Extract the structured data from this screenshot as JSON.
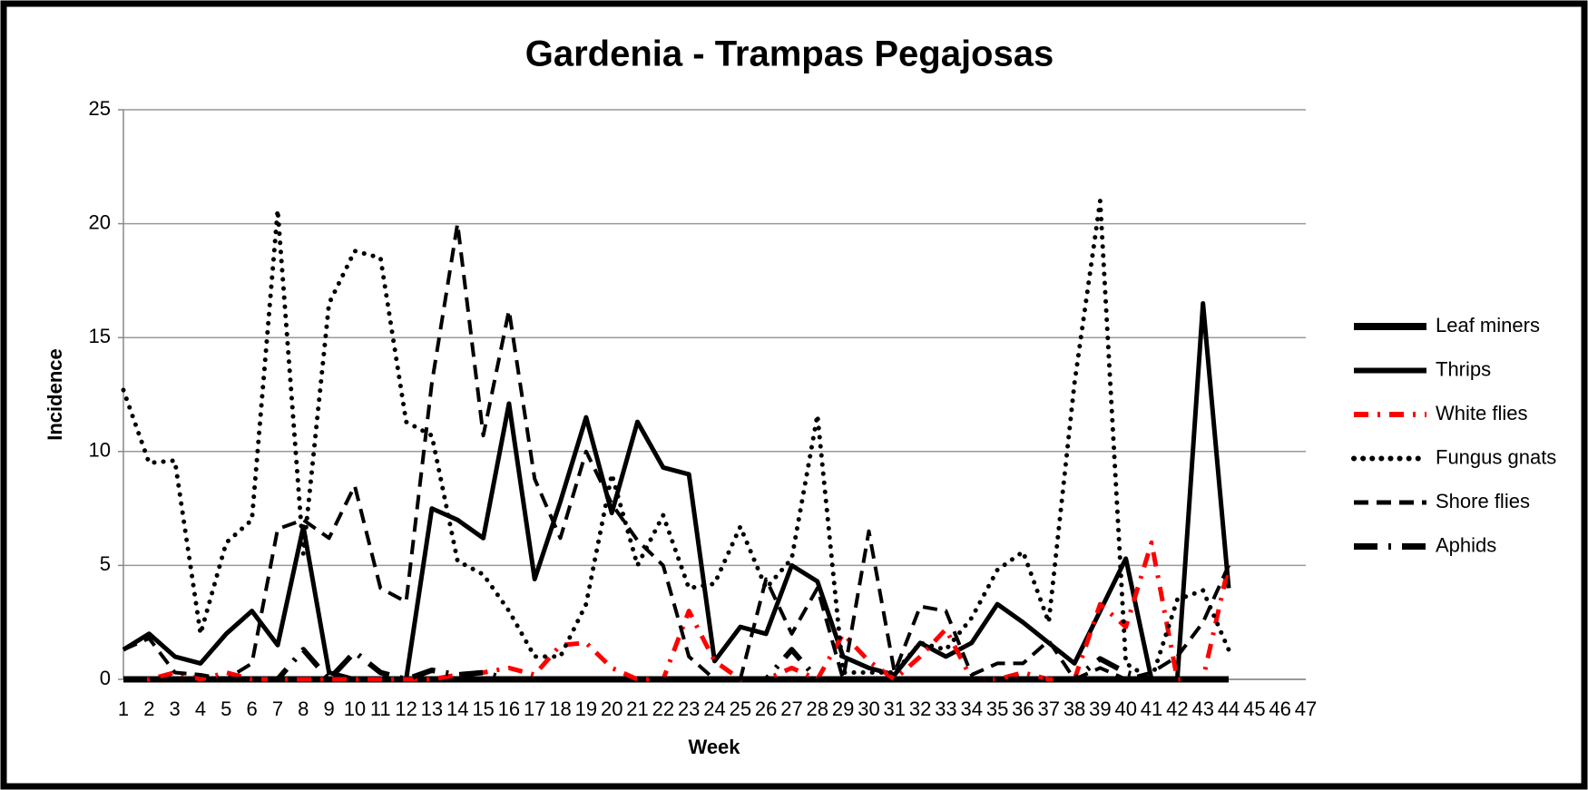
{
  "chart_data": {
    "type": "line",
    "title": "Gardenia - Trampas Pegajosas",
    "x_label": "Week",
    "y_label": "Incidence",
    "categories": [
      "1",
      "2",
      "3",
      "4",
      "5",
      "6",
      "7",
      "8",
      "9",
      "10",
      "11",
      "12",
      "13",
      "14",
      "15",
      "16",
      "17",
      "18",
      "19",
      "20",
      "21",
      "22",
      "23",
      "24",
      "25",
      "26",
      "27",
      "28",
      "29",
      "30",
      "31",
      "32",
      "33",
      "34",
      "35",
      "36",
      "37",
      "38",
      "39",
      "40",
      "41",
      "42",
      "43",
      "44",
      "45",
      "46",
      "47"
    ],
    "ylim": [
      0,
      25
    ],
    "yticks": [
      0,
      5,
      10,
      15,
      20,
      25
    ],
    "grid": true,
    "legend": "right",
    "series": [
      {
        "name": "Leaf miners",
        "color": "#000000",
        "style": "solid-heavy",
        "values": [
          0,
          0,
          0,
          0,
          0,
          0,
          0,
          0,
          0,
          0,
          0,
          0,
          0,
          0,
          0,
          0,
          0,
          0,
          0,
          0,
          0,
          0,
          0,
          0,
          0,
          0,
          0,
          0,
          0,
          0,
          0,
          0,
          0,
          0,
          0,
          0,
          0,
          0,
          0,
          0,
          0,
          0,
          0,
          0,
          null,
          null,
          null
        ]
      },
      {
        "name": "Thrips",
        "color": "#000000",
        "style": "solid",
        "values": [
          1.3,
          2,
          1,
          0.7,
          2,
          3,
          1.5,
          6.7,
          0.3,
          0,
          0,
          0,
          7.5,
          7,
          6.2,
          12.1,
          4.4,
          7.8,
          11.5,
          7.3,
          11.3,
          9.3,
          9,
          0.8,
          2.3,
          2,
          5,
          4.3,
          1,
          0.5,
          0.2,
          1.6,
          1,
          1.6,
          3.3,
          2.5,
          1.6,
          0.7,
          3,
          5.3,
          0,
          0,
          16.5,
          4,
          null,
          null,
          null
        ]
      },
      {
        "name": "White flies",
        "color": "#ff0000",
        "style": "dashdot",
        "values": [
          0,
          0,
          0.3,
          0,
          0.3,
          0,
          0,
          0,
          0,
          0,
          0,
          0,
          0,
          0.2,
          0.3,
          0.5,
          0.2,
          1.5,
          1.6,
          0.5,
          0,
          0,
          3,
          0.8,
          0,
          0,
          0.5,
          0,
          2,
          0.8,
          0,
          1,
          2.2,
          0,
          0,
          0.3,
          0,
          0,
          3.3,
          2.3,
          6,
          0,
          0,
          5,
          null,
          null,
          null
        ]
      },
      {
        "name": "Fungus gnats",
        "color": "#000000",
        "style": "dotted",
        "values": [
          12.7,
          9.5,
          9.6,
          2,
          6,
          7,
          20.6,
          5.5,
          16.5,
          18.8,
          18.5,
          11.3,
          10.7,
          5.2,
          4.6,
          3,
          1,
          1,
          3.3,
          9,
          5,
          7.2,
          4,
          4.2,
          6.7,
          4,
          5.3,
          11.6,
          0.3,
          0.3,
          0.3,
          1.6,
          1.3,
          2.7,
          4.8,
          5.6,
          2.5,
          13,
          21,
          0.7,
          0,
          3.5,
          3.9,
          1.3,
          null,
          null,
          null
        ]
      },
      {
        "name": "Shore flies",
        "color": "#000000",
        "style": "dashed",
        "values": [
          1.3,
          1.8,
          0.3,
          0.2,
          0,
          0.7,
          6.6,
          7,
          6.2,
          8.5,
          4,
          3.4,
          13,
          20,
          10.7,
          16.2,
          8.8,
          6.2,
          10,
          7.7,
          6.1,
          5,
          1,
          0,
          0,
          4.4,
          2,
          4,
          0,
          6.5,
          0.3,
          3.2,
          3,
          0.2,
          0.7,
          0.7,
          1.7,
          0,
          0.5,
          0,
          0.3,
          1,
          2.5,
          5,
          null,
          null,
          null
        ]
      },
      {
        "name": "Aphids",
        "color": "#000000",
        "style": "longdashdot",
        "values": [
          0,
          0,
          0,
          0,
          0,
          0,
          0,
          1.3,
          0,
          1.2,
          0.3,
          0,
          0.4,
          0.2,
          0.3,
          0,
          0,
          0,
          0,
          0,
          0,
          0,
          0,
          0,
          0,
          0,
          1.3,
          0,
          0,
          0,
          0,
          0,
          0,
          0,
          0,
          0,
          0,
          0,
          0.9,
          0.3,
          0,
          0,
          0,
          0,
          null,
          null,
          null
        ]
      }
    ]
  }
}
